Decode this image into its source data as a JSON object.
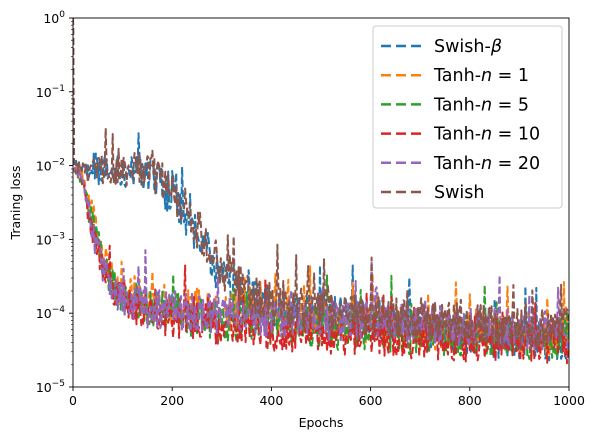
{
  "chart_data": {
    "type": "line",
    "xlabel": "Epochs",
    "ylabel": "Traning loss",
    "xlim": [
      0,
      1000
    ],
    "ylim": [
      1e-05,
      1
    ],
    "yscale": "log",
    "grid": false,
    "legend_position": "top-right",
    "x_ticks": [
      0,
      200,
      400,
      600,
      800,
      1000
    ],
    "x_tick_labels": [
      "0",
      "200",
      "400",
      "600",
      "800",
      "1000"
    ],
    "y_ticks": [
      1e-05,
      0.0001,
      0.001,
      0.01,
      0.1,
      1
    ],
    "y_tick_labels": [
      {
        "base": "10",
        "exp": "−5"
      },
      {
        "base": "10",
        "exp": "−4"
      },
      {
        "base": "10",
        "exp": "−3"
      },
      {
        "base": "10",
        "exp": "−2"
      },
      {
        "base": "10",
        "exp": "−1"
      },
      {
        "base": "10",
        "exp": "0"
      }
    ],
    "series": [
      {
        "name": "Swish-β",
        "legend_main": "Swish-",
        "legend_sym": "β",
        "legend_tail": "",
        "color": "#1f77b4",
        "x": [
          0,
          20,
          60,
          100,
          140,
          170,
          200,
          230,
          260,
          290,
          320,
          360,
          400,
          450,
          500,
          600,
          700,
          800,
          900,
          1000
        ],
        "y": [
          0.01,
          0.009,
          0.0088,
          0.0085,
          0.0075,
          0.006,
          0.004,
          0.002,
          0.0009,
          0.0004,
          0.00025,
          0.00015,
          0.00012,
          0.0001,
          0.0001,
          8e-05,
          6e-05,
          5e-05,
          4.5e-05,
          4e-05
        ]
      },
      {
        "name": "Tanh-n = 1",
        "legend_main": "Tanh-",
        "legend_sym": "n",
        "legend_tail": " = 1",
        "color": "#ff7f0e",
        "x": [
          0,
          20,
          40,
          60,
          80,
          100,
          150,
          200,
          300,
          400,
          500,
          600,
          700,
          800,
          900,
          1000
        ],
        "y": [
          0.01,
          0.007,
          0.002,
          0.0006,
          0.0003,
          0.0002,
          0.00015,
          0.00013,
          0.0001,
          9e-05,
          8e-05,
          7e-05,
          6e-05,
          6e-05,
          5e-05,
          5e-05
        ]
      },
      {
        "name": "Tanh-n = 5",
        "legend_main": "Tanh-",
        "legend_sym": "n",
        "legend_tail": " = 5",
        "color": "#2ca02c",
        "x": [
          0,
          20,
          40,
          60,
          80,
          100,
          150,
          200,
          300,
          400,
          500,
          600,
          700,
          800,
          900,
          1000
        ],
        "y": [
          0.01,
          0.006,
          0.0015,
          0.0005,
          0.00025,
          0.00016,
          0.00012,
          0.0001,
          8e-05,
          7e-05,
          6e-05,
          6e-05,
          5e-05,
          5e-05,
          4.5e-05,
          4.5e-05
        ]
      },
      {
        "name": "Tanh-n = 10",
        "legend_main": "Tanh-",
        "legend_sym": "n",
        "legend_tail": " = 10",
        "color": "#d62728",
        "x": [
          0,
          20,
          40,
          60,
          80,
          100,
          150,
          200,
          300,
          400,
          500,
          600,
          700,
          800,
          900,
          1000
        ],
        "y": [
          0.01,
          0.006,
          0.0012,
          0.0004,
          0.0002,
          0.00015,
          0.00011,
          9e-05,
          7e-05,
          6e-05,
          5e-05,
          5e-05,
          4.5e-05,
          4e-05,
          4e-05,
          4e-05
        ]
      },
      {
        "name": "Tanh-n = 20",
        "legend_main": "Tanh-",
        "legend_sym": "n",
        "legend_tail": " = 20",
        "color": "#9467bd",
        "x": [
          0,
          20,
          40,
          60,
          80,
          100,
          150,
          200,
          300,
          400,
          500,
          600,
          700,
          800,
          900,
          1000
        ],
        "y": [
          0.01,
          0.006,
          0.0012,
          0.0004,
          0.0002,
          0.00015,
          0.00012,
          0.00011,
          0.0001,
          9e-05,
          8e-05,
          8e-05,
          7e-05,
          7e-05,
          6e-05,
          6e-05
        ]
      },
      {
        "name": "Swish",
        "legend_main": "Swish",
        "legend_sym": "",
        "legend_tail": "",
        "color": "#8c564b",
        "x": [
          0,
          20,
          60,
          100,
          140,
          170,
          200,
          230,
          260,
          290,
          320,
          360,
          400,
          450,
          500,
          600,
          700,
          800,
          900,
          1000
        ],
        "y": [
          0.01,
          0.009,
          0.0088,
          0.0086,
          0.0078,
          0.0065,
          0.0045,
          0.0024,
          0.0011,
          0.0005,
          0.0003,
          0.00018,
          0.00014,
          0.00012,
          0.00011,
          9e-05,
          8e-05,
          7e-05,
          6e-05,
          6e-05
        ]
      }
    ]
  }
}
